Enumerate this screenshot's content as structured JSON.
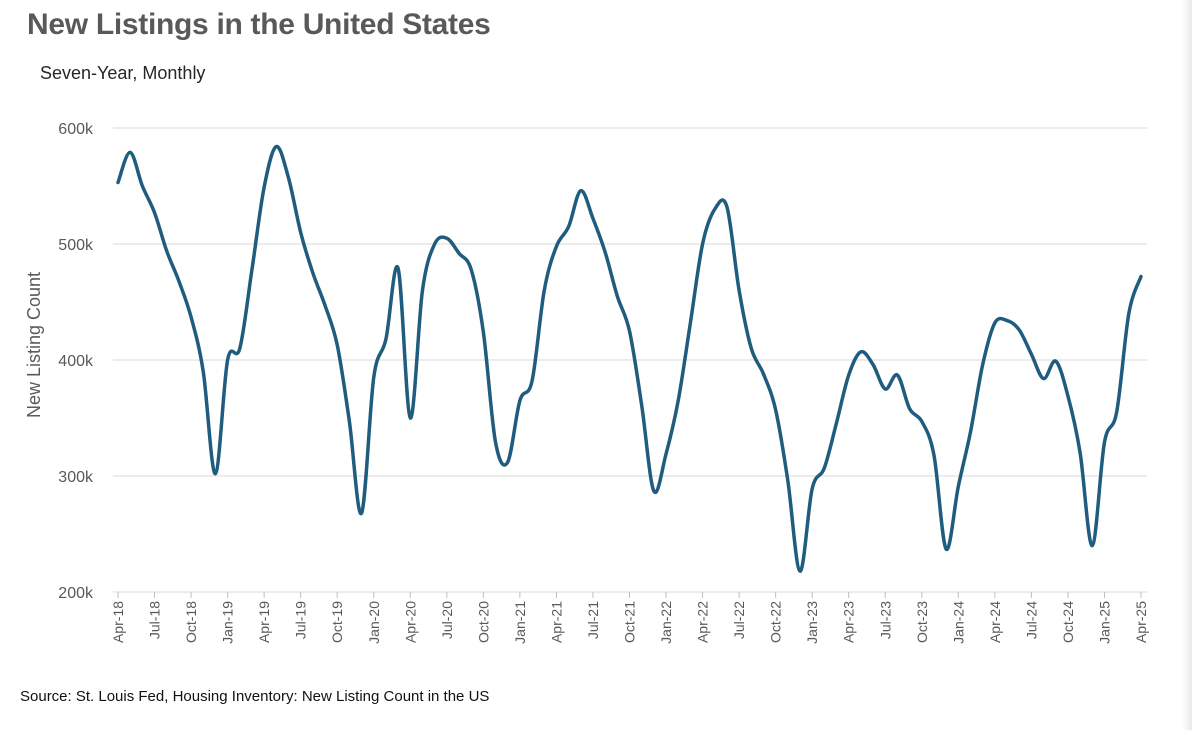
{
  "title": "New Listings in the United States",
  "subtitle": "Seven-Year, Monthly",
  "source": "Source: St. Louis Fed, Housing Inventory: New Listing Count in the US",
  "colors": {
    "line": "#1f5c7e",
    "grid": "#d9d9d9",
    "text": "#595959"
  },
  "chart_data": {
    "type": "line",
    "title": "New Listings in the United States",
    "subtitle": "Seven-Year, Monthly",
    "xlabel": "",
    "ylabel": "New Listing Count",
    "ylim": [
      200000,
      600000
    ],
    "y_ticks": [
      200000,
      300000,
      400000,
      500000,
      600000
    ],
    "y_tick_labels": [
      "200k",
      "300k",
      "400k",
      "500k",
      "600k"
    ],
    "grid": true,
    "legend": "none",
    "x": [
      "Apr-18",
      "May-18",
      "Jun-18",
      "Jul-18",
      "Aug-18",
      "Sep-18",
      "Oct-18",
      "Nov-18",
      "Dec-18",
      "Jan-19",
      "Feb-19",
      "Mar-19",
      "Apr-19",
      "May-19",
      "Jun-19",
      "Jul-19",
      "Aug-19",
      "Sep-19",
      "Oct-19",
      "Nov-19",
      "Dec-19",
      "Jan-20",
      "Feb-20",
      "Mar-20",
      "Apr-20",
      "May-20",
      "Jun-20",
      "Jul-20",
      "Aug-20",
      "Sep-20",
      "Oct-20",
      "Nov-20",
      "Dec-20",
      "Jan-21",
      "Feb-21",
      "Mar-21",
      "Apr-21",
      "May-21",
      "Jun-21",
      "Jul-21",
      "Aug-21",
      "Sep-21",
      "Oct-21",
      "Nov-21",
      "Dec-21",
      "Jan-22",
      "Feb-22",
      "Mar-22",
      "Apr-22",
      "May-22",
      "Jun-22",
      "Jul-22",
      "Aug-22",
      "Sep-22",
      "Oct-22",
      "Nov-22",
      "Dec-22",
      "Jan-23",
      "Feb-23",
      "Mar-23",
      "Apr-23",
      "May-23",
      "Jun-23",
      "Jul-23",
      "Aug-23",
      "Sep-23",
      "Oct-23",
      "Nov-23",
      "Dec-23",
      "Jan-24",
      "Feb-24",
      "Mar-24",
      "Apr-24",
      "May-24",
      "Jun-24",
      "Jul-24",
      "Aug-24",
      "Sep-24",
      "Oct-24",
      "Nov-24",
      "Dec-24",
      "Jan-25",
      "Feb-25",
      "Mar-25",
      "Apr-25"
    ],
    "x_tick_labels": [
      "Apr-18",
      "Jul-18",
      "Oct-18",
      "Jan-19",
      "Apr-19",
      "Jul-19",
      "Oct-19",
      "Jan-20",
      "Apr-20",
      "Jul-20",
      "Oct-20",
      "Jan-21",
      "Apr-21",
      "Jul-21",
      "Oct-21",
      "Jan-22",
      "Apr-22",
      "Jul-22",
      "Oct-22",
      "Jan-23",
      "Apr-23",
      "Jul-23",
      "Oct-23",
      "Jan-24",
      "Apr-24",
      "Jul-24",
      "Oct-24",
      "Jan-25",
      "Apr-25"
    ],
    "series": [
      {
        "values": [
          553000,
          579000,
          550000,
          527000,
          494000,
          468000,
          437000,
          390000,
          302000,
          400000,
          410000,
          478000,
          549000,
          584000,
          557000,
          510000,
          475000,
          447000,
          413000,
          347000,
          268000,
          385000,
          418000,
          479000,
          350000,
          460000,
          500000,
          505000,
          492000,
          478000,
          424000,
          329000,
          312000,
          365000,
          382000,
          460000,
          498000,
          515000,
          546000,
          522000,
          493000,
          455000,
          425000,
          361000,
          287000,
          319000,
          365000,
          432000,
          500000,
          530000,
          532000,
          460000,
          410000,
          388000,
          357000,
          296000,
          218000,
          289000,
          307000,
          346000,
          387000,
          407000,
          396000,
          375000,
          387000,
          358000,
          347000,
          318000,
          237000,
          291000,
          338000,
          396000,
          432000,
          434000,
          426000,
          405000,
          384000,
          399000,
          369000,
          320000,
          240000,
          329000,
          355000,
          440000,
          472000
        ]
      }
    ]
  }
}
